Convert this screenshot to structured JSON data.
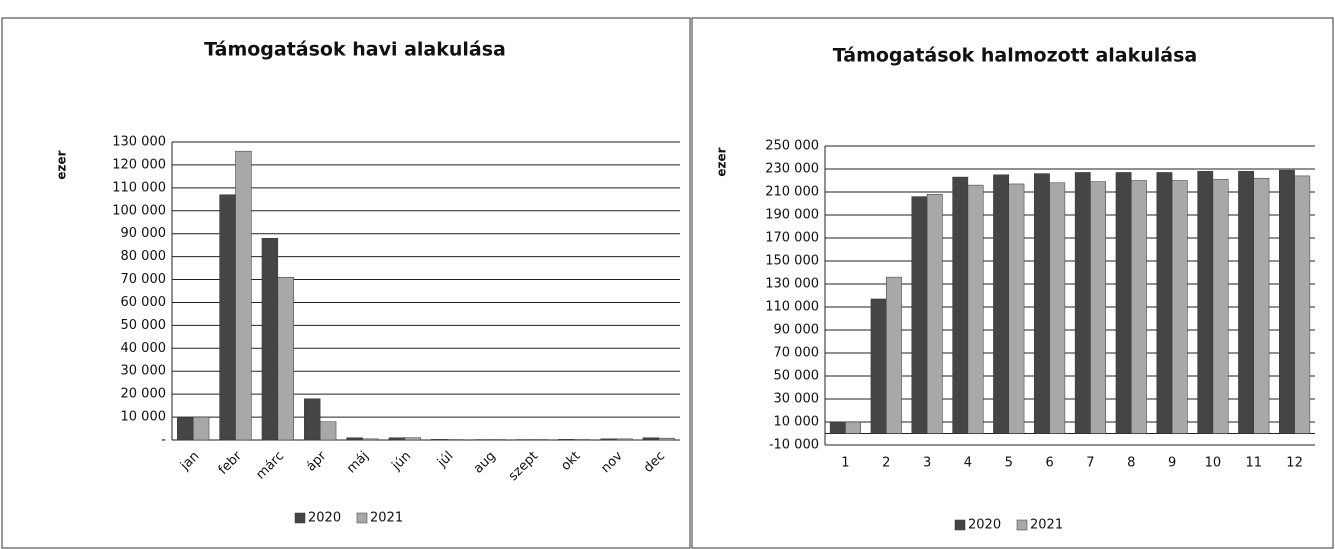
{
  "chart_data": [
    {
      "type": "bar",
      "title": "Támogatások havi alakulása",
      "y_label": "ezer",
      "categories": [
        "jan",
        "febr",
        "márc",
        "ápr",
        "máj",
        "jún",
        "júl",
        "aug",
        "szept",
        "okt",
        "nov",
        "dec"
      ],
      "series": [
        {
          "name": "2020",
          "color": "#454545",
          "values": [
            10000,
            107000,
            88000,
            18000,
            1000,
            1000,
            300,
            200,
            200,
            300,
            500,
            1000
          ]
        },
        {
          "name": "2021",
          "color": "#a8a8a8",
          "values": [
            10000,
            126000,
            71000,
            8000,
            500,
            1000,
            200,
            200,
            200,
            200,
            500,
            800
          ]
        }
      ],
      "ylim": [
        0,
        130000
      ],
      "yticks": [
        {
          "value": 0,
          "label": "-"
        },
        {
          "value": 10000,
          "label": "10 000"
        },
        {
          "value": 20000,
          "label": "20 000"
        },
        {
          "value": 30000,
          "label": "30 000"
        },
        {
          "value": 40000,
          "label": "40 000"
        },
        {
          "value": 50000,
          "label": "50 000"
        },
        {
          "value": 60000,
          "label": "60 000"
        },
        {
          "value": 70000,
          "label": "70 000"
        },
        {
          "value": 80000,
          "label": "80 000"
        },
        {
          "value": 90000,
          "label": "90 000"
        },
        {
          "value": 100000,
          "label": "100 000"
        },
        {
          "value": 110000,
          "label": "110 000"
        },
        {
          "value": 120000,
          "label": "120 000"
        },
        {
          "value": 130000,
          "label": "130 000"
        }
      ],
      "grid": true,
      "legend": "bottom"
    },
    {
      "type": "bar",
      "title": "Támogatások halmozott alakulása",
      "y_label": "ezer",
      "categories": [
        "1",
        "2",
        "3",
        "4",
        "5",
        "6",
        "7",
        "8",
        "9",
        "10",
        "11",
        "12"
      ],
      "series": [
        {
          "name": "2020",
          "color": "#454545",
          "values": [
            10000,
            117000,
            206000,
            223000,
            225000,
            226000,
            227000,
            227000,
            227000,
            228000,
            228000,
            229000
          ]
        },
        {
          "name": "2021",
          "color": "#a8a8a8",
          "values": [
            10000,
            136000,
            208000,
            216000,
            217000,
            218000,
            219000,
            220000,
            220000,
            221000,
            222000,
            224000
          ]
        }
      ],
      "ylim": [
        -10000,
        250000
      ],
      "yticks": [
        {
          "value": -10000,
          "label": "-10 000"
        },
        {
          "value": 10000,
          "label": "10 000"
        },
        {
          "value": 30000,
          "label": "30 000"
        },
        {
          "value": 50000,
          "label": "50 000"
        },
        {
          "value": 70000,
          "label": "70 000"
        },
        {
          "value": 90000,
          "label": "90 000"
        },
        {
          "value": 110000,
          "label": "110 000"
        },
        {
          "value": 130000,
          "label": "130 000"
        },
        {
          "value": 150000,
          "label": "150 000"
        },
        {
          "value": 170000,
          "label": "170 000"
        },
        {
          "value": 190000,
          "label": "190 000"
        },
        {
          "value": 210000,
          "label": "210 000"
        },
        {
          "value": 230000,
          "label": "230 000"
        },
        {
          "value": 250000,
          "label": "250 000"
        }
      ],
      "grid": true,
      "legend": "bottom"
    }
  ]
}
